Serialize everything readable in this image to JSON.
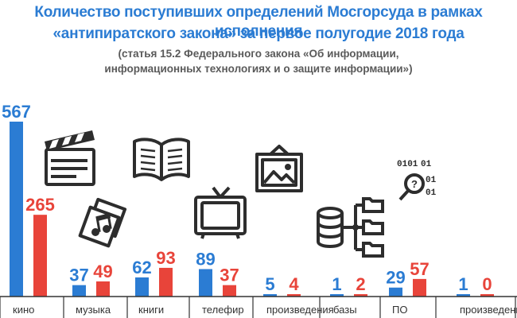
{
  "header": {
    "title_line1": "Количество поступивших определений Мосгорсуда в рамках исполнения",
    "title_line2": "«антипиратского закона» за первое полугодие 2018 года",
    "sub_line1": "(статья 15.2 Федерального закона «Об информации,",
    "sub_line2": "информационных технологиях и о защите информации»)"
  },
  "colors": {
    "blue": "#2b7cd3",
    "red": "#e8443a",
    "title": "#2b7cd3",
    "subtitle": "#5a5a5a",
    "icon": "#2d2d2d"
  },
  "icons": [
    "film-clapperboard-icon",
    "music-record-icon",
    "open-book-icon",
    "tv-icon",
    "picture-icon",
    "database-icon",
    "software-code-icon"
  ],
  "chart_data": {
    "type": "bar",
    "categories": [
      "кино",
      "музыка",
      "книги",
      "телефир",
      "произведения",
      "базы",
      "ПО",
      "произведения"
    ],
    "series": [
      {
        "values": [
          567,
          37,
          62,
          89,
          5,
          1,
          29,
          1
        ]
      },
      {
        "values": [
          265,
          49,
          93,
          37,
          4,
          2,
          57,
          0
        ]
      }
    ],
    "title": "Количество поступивших определений Мосгорсуда в рамках исполнения «антипиратского закона» за первое полугодие 2018 года",
    "xlabel": "",
    "ylabel": "",
    "grid": false,
    "legend": "none",
    "data_labels": true
  }
}
